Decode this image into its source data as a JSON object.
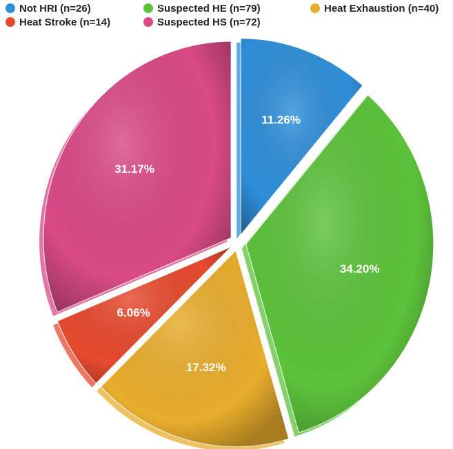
{
  "chart_data": {
    "type": "pie",
    "categories": [
      "Not HRI (n=26)",
      "Suspected HE (n=79)",
      "Heat Exhaustion (n=40)",
      "Heat Stroke (n=14)",
      "Suspected HS (n=72)"
    ],
    "values": [
      11.26,
      34.2,
      17.32,
      6.06,
      31.17
    ],
    "value_labels": [
      "11.26%",
      "34.20%",
      "17.32%",
      "6.06%",
      "31.17%"
    ],
    "colors": [
      "#2f8fd8",
      "#5cc23a",
      "#e8ad2c",
      "#e64a2e",
      "#d94a86"
    ],
    "legend": "top"
  }
}
